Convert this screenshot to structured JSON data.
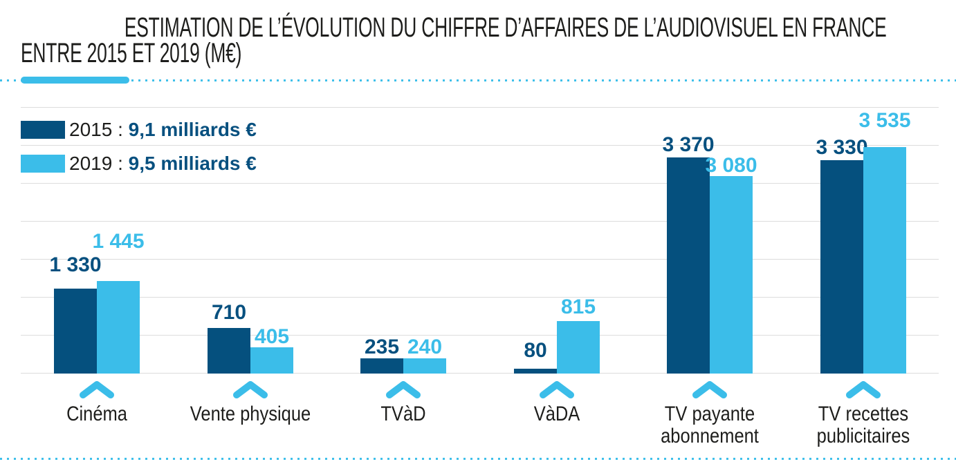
{
  "title": {
    "line1": "ESTIMATION DE L’ÉVOLUTION DU CHIFFRE D’AFFAIRES DE L’AUDIOVISUEL EN FRANCE",
    "line2": "ENTRE 2015 ET 2019 (M€)"
  },
  "legend": {
    "items": [
      {
        "year_label": "2015 : ",
        "value_label": "9,1 milliards €",
        "swatch_color": "#05507e"
      },
      {
        "year_label": "2019 : ",
        "value_label": "9,5 milliards €",
        "swatch_color": "#3bbde9"
      }
    ]
  },
  "colors": {
    "dark_blue": "#05507e",
    "light_blue": "#3bbde9",
    "value_label_dark": "#07507f",
    "value_label_light": "#3bbde9",
    "gridline": "#dcdcdc",
    "dotted_rule": "#3fc0ea",
    "text": "#1d1d1b"
  },
  "chart_data": {
    "type": "bar",
    "title": "ESTIMATION DE L’ÉVOLUTION DU CHIFFRE D’AFFAIRES DE L’AUDIOVISUEL EN FRANCE ENTRE 2015 ET 2019 (M€)",
    "unit": "M€",
    "categories": [
      "Cinéma",
      "Vente physique",
      "TVàD",
      "VàDA",
      "TV payante\nabonnement",
      "TV recettes\npublicitaires"
    ],
    "series": [
      {
        "name": "2015",
        "total_label": "9,1 milliards €",
        "color": "#05507e",
        "values": [
          1330,
          710,
          235,
          80,
          3370,
          3330
        ],
        "value_labels": [
          "1 330",
          "710",
          "235",
          "80",
          "3 370",
          "3 330"
        ]
      },
      {
        "name": "2019",
        "total_label": "9,5 milliards €",
        "color": "#3bbde9",
        "values": [
          1445,
          405,
          240,
          815,
          3080,
          3535
        ],
        "value_labels": [
          "1 445",
          "405",
          "240",
          "815",
          "3 080",
          "3 535"
        ]
      }
    ],
    "ylim": [
      0,
      3700
    ],
    "grid": true,
    "legend_position": "top-left"
  }
}
